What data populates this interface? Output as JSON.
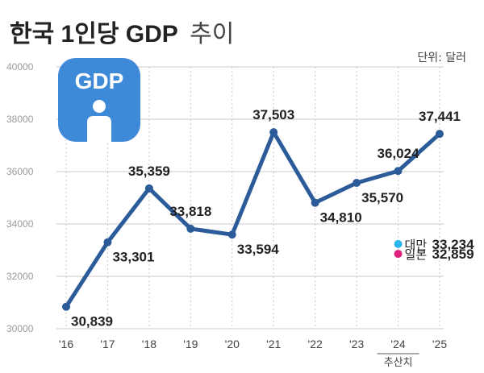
{
  "header": {
    "title_bold": "한국 1인당 GDP",
    "title_light": "추이",
    "unit": "단위: 달러"
  },
  "icon": {
    "label": "GDP",
    "name": "gdp-person-icon"
  },
  "colors": {
    "line": "#2b5b98",
    "grid": "#c9c9c9",
    "axis_text": "#9a9a9a",
    "text": "#222222",
    "icon_blue": "#3f89d9",
    "taiwan_dot": "#29b6f0",
    "japan_dot": "#e0217d"
  },
  "chart_data": {
    "type": "line",
    "title": "한국 1인당 GDP 추이",
    "ylabel": "단위: 달러",
    "categories": [
      "'16",
      "'17",
      "'18",
      "'19",
      "'20",
      "'21",
      "'22",
      "'23",
      "'24",
      "'25"
    ],
    "x_note": {
      "category": "'24",
      "label": "추산치"
    },
    "ylim": [
      30000,
      40000
    ],
    "yticks": [
      30000,
      32000,
      34000,
      36000,
      38000,
      40000
    ],
    "grid": true,
    "series": [
      {
        "values": [
          30839,
          33301,
          35359,
          33818,
          33594,
          37503,
          34810,
          35570,
          36024,
          37441
        ],
        "value_labels": [
          "30,839",
          "33,301",
          "35,359",
          "33,818",
          "33,594",
          "37,503",
          "34,810",
          "35,570",
          "36,024",
          "37,441"
        ]
      }
    ],
    "comparisons": [
      {
        "name": "대만",
        "category": "'24",
        "value": 33234,
        "value_label": "33,234",
        "color": "#29b6f0"
      },
      {
        "name": "일본",
        "category": "'24",
        "value": 32859,
        "value_label": "32,859",
        "color": "#e0217d"
      }
    ]
  }
}
